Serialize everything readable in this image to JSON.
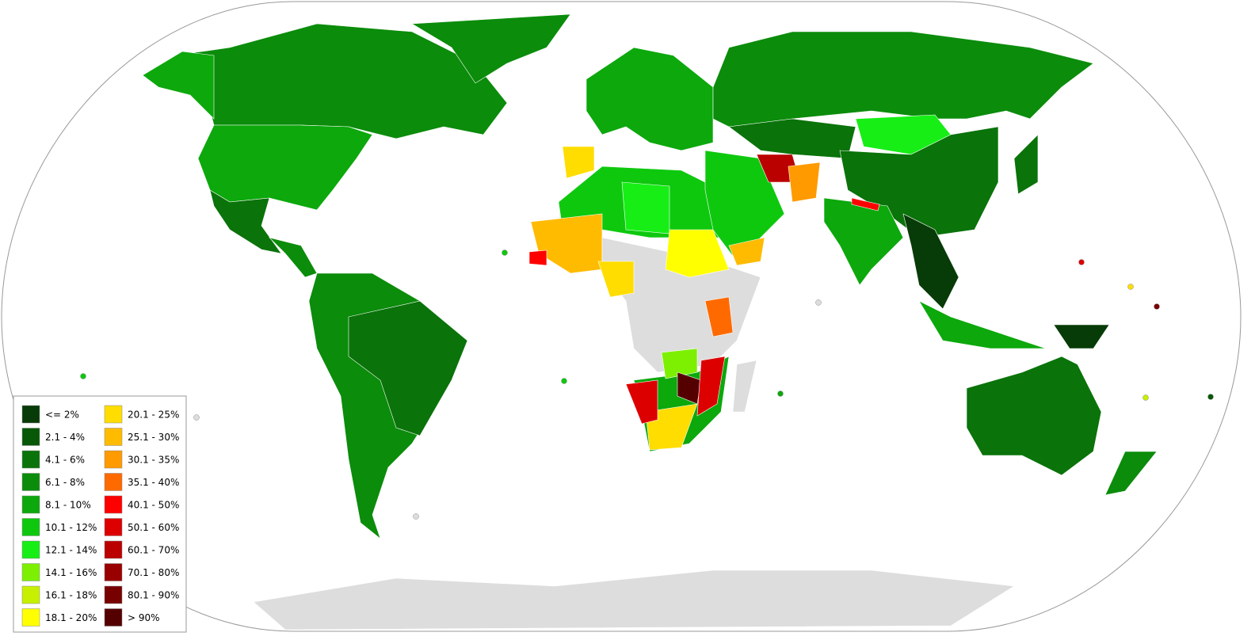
{
  "legend": {
    "items": [
      {
        "label": "<= 2%",
        "color": "#073b07"
      },
      {
        "label": "2.1 - 4%",
        "color": "#075807"
      },
      {
        "label": "4.1 - 6%",
        "color": "#0a730a"
      },
      {
        "label": "6.1 - 8%",
        "color": "#0b8c0b"
      },
      {
        "label": "8.1 - 10%",
        "color": "#0ca80c"
      },
      {
        "label": "10.1 - 12%",
        "color": "#0ec80e"
      },
      {
        "label": "12.1 - 14%",
        "color": "#16ee16"
      },
      {
        "label": "14.1 - 16%",
        "color": "#7cf000"
      },
      {
        "label": "16.1 - 18%",
        "color": "#c6f000"
      },
      {
        "label": "18.1 - 20%",
        "color": "#ffff00"
      },
      {
        "label": "20.1 - 25%",
        "color": "#ffdd00"
      },
      {
        "label": "25.1 - 30%",
        "color": "#ffbb00"
      },
      {
        "label": "30.1 - 35%",
        "color": "#ff9a00"
      },
      {
        "label": "35.1 - 40%",
        "color": "#ff6a00"
      },
      {
        "label": "40.1 - 50%",
        "color": "#ff0000"
      },
      {
        "label": "50.1 - 60%",
        "color": "#dd0000"
      },
      {
        "label": "60.1 - 70%",
        "color": "#bb0000"
      },
      {
        "label": "70.1 - 80%",
        "color": "#990000"
      },
      {
        "label": "80.1 - 90%",
        "color": "#770000"
      },
      {
        "label": "> 90%",
        "color": "#550000"
      }
    ]
  }
}
